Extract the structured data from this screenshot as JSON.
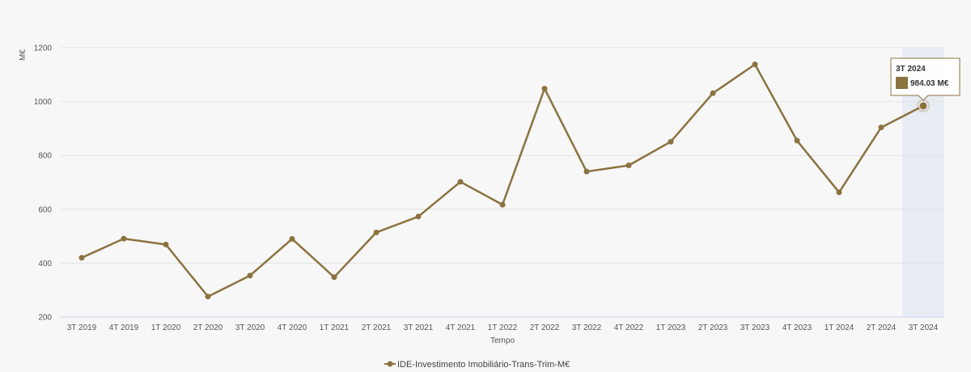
{
  "chart_data": {
    "type": "line",
    "categories": [
      "3T 2019",
      "4T 2019",
      "1T 2020",
      "2T 2020",
      "3T 2020",
      "4T 2020",
      "1T 2021",
      "2T 2021",
      "3T 2021",
      "4T 2021",
      "1T 2022",
      "2T 2022",
      "3T 2022",
      "4T 2022",
      "1T 2023",
      "2T 2023",
      "3T 2023",
      "4T 2023",
      "1T 2024",
      "2T 2024",
      "3T 2024"
    ],
    "series": [
      {
        "name": "IDE-Investimento Imobiliário-Trans-Trim-M€",
        "values": [
          420,
          491,
          469,
          276,
          354,
          490,
          348,
          514,
          573,
          702,
          617,
          1048,
          740,
          763,
          851,
          1031,
          1138,
          855,
          663,
          904,
          984.03
        ]
      }
    ],
    "xlabel": "Tempo",
    "ylabel": "M€",
    "ylim": [
      200,
      1200
    ],
    "yticks": [
      200,
      400,
      600,
      800,
      1000,
      1200
    ],
    "grid": true,
    "legend_position": "bottom-center",
    "series_color": "#8b7340",
    "highlight_band_color": "#e8ecf3",
    "tooltip": {
      "category": "3T 2024",
      "value_text": "984.03 M€"
    }
  }
}
